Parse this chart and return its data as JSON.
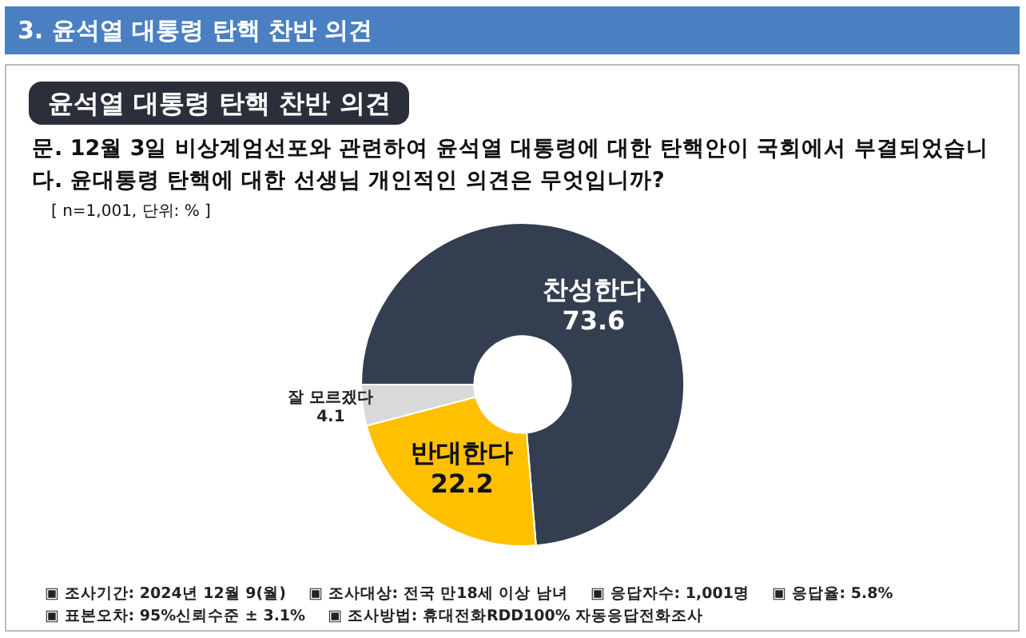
{
  "chart_data": {
    "type": "donut",
    "title": "3. 윤석열 대통령 탄핵 찬반 의견",
    "subtitle": "윤석열 대통령 탄핵 찬반 의견",
    "categories": [
      "찬성한다",
      "반대한다",
      "잘 모르겠다"
    ],
    "values": [
      73.6,
      22.2,
      4.1
    ],
    "colors": [
      "#333e50",
      "#ffc000",
      "#d9d9d9"
    ],
    "data_labels": true,
    "legend": false,
    "annotations": [
      "문. 12월 3일 비상계엄선포와 관련하여 윤석열 대통령에 대한 탄핵안이 국회에서 부결되었습니다. 윤대통령 탄핵에 대한 선생님 개인적인 의견은 무엇입니까?",
      "[ n=1,001, 단위: % ]",
      "▣ 조사기간: 2024년 12월 9(월)",
      "▣ 조사대상: 전국 만18세 이상 남녀",
      "▣ 응답자수: 1,001명",
      "▣ 응답율: 5.8%",
      "▣ 표본오차: 95%신뢰수준 ± 3.1%",
      "▣ 조사방법: 휴대전화RDD100% 자동응답전화조사"
    ]
  }
}
